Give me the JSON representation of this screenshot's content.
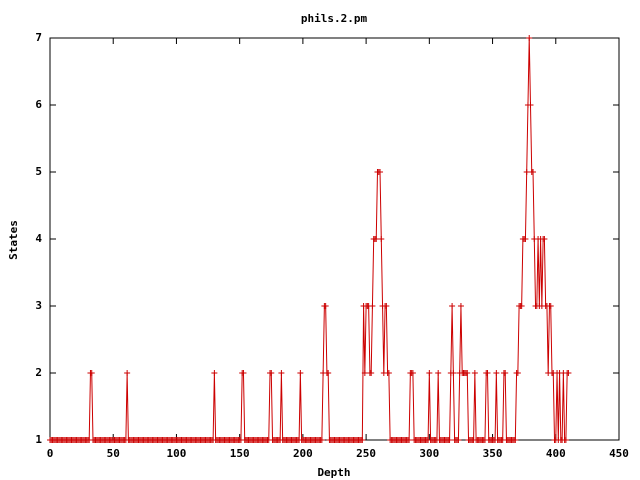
{
  "chart_data": {
    "type": "line",
    "title": "phils.2.pm",
    "x_label": "Depth",
    "y_label": "States",
    "xlim": [
      0,
      450
    ],
    "xticks": [
      0,
      50,
      100,
      150,
      200,
      250,
      300,
      350,
      400,
      450
    ],
    "ylim": [
      1,
      7
    ],
    "yticks": [
      1,
      2,
      3,
      4,
      5,
      6,
      7
    ],
    "grid": false,
    "x": [
      0,
      1,
      2,
      3,
      4,
      5,
      6,
      7,
      8,
      9,
      10,
      11,
      12,
      13,
      14,
      15,
      16,
      17,
      18,
      19,
      20,
      21,
      22,
      23,
      24,
      25,
      26,
      27,
      28,
      29,
      30,
      31,
      32,
      33,
      34,
      35,
      36,
      37,
      38,
      39,
      40,
      41,
      42,
      43,
      44,
      45,
      46,
      47,
      48,
      49,
      50,
      51,
      52,
      53,
      54,
      55,
      56,
      57,
      58,
      59,
      60,
      61,
      62,
      63,
      64,
      65,
      66,
      67,
      68,
      69,
      70,
      71,
      72,
      73,
      74,
      75,
      76,
      77,
      78,
      79,
      80,
      81,
      82,
      83,
      84,
      85,
      86,
      87,
      88,
      89,
      90,
      91,
      92,
      93,
      94,
      95,
      96,
      97,
      98,
      99,
      100,
      101,
      102,
      103,
      104,
      105,
      106,
      107,
      108,
      109,
      110,
      111,
      112,
      113,
      114,
      115,
      116,
      117,
      118,
      119,
      120,
      121,
      122,
      123,
      124,
      125,
      126,
      127,
      128,
      129,
      130,
      131,
      132,
      133,
      134,
      135,
      136,
      137,
      138,
      139,
      140,
      141,
      142,
      143,
      144,
      145,
      146,
      147,
      148,
      149,
      150,
      151,
      152,
      153,
      154,
      155,
      156,
      157,
      158,
      159,
      160,
      161,
      162,
      163,
      164,
      165,
      166,
      167,
      168,
      169,
      170,
      171,
      172,
      173,
      174,
      175,
      176,
      177,
      178,
      179,
      180,
      181,
      182,
      183,
      184,
      185,
      186,
      187,
      188,
      189,
      190,
      191,
      192,
      193,
      194,
      195,
      196,
      197,
      198,
      199,
      200,
      201,
      202,
      203,
      204,
      205,
      206,
      207,
      208,
      209,
      210,
      211,
      212,
      213,
      214,
      215,
      216,
      217,
      218,
      219,
      220,
      221,
      222,
      223,
      224,
      225,
      226,
      227,
      228,
      229,
      230,
      231,
      232,
      233,
      234,
      235,
      236,
      237,
      238,
      239,
      240,
      241,
      242,
      243,
      244,
      245,
      246,
      247,
      248,
      249,
      250,
      251,
      252,
      253,
      254,
      255,
      256,
      257,
      258,
      259,
      260,
      261,
      262,
      263,
      264,
      265,
      266,
      267,
      268,
      269,
      270,
      271,
      272,
      273,
      274,
      275,
      276,
      277,
      278,
      279,
      280,
      281,
      282,
      283,
      284,
      285,
      286,
      287,
      288,
      289,
      290,
      291,
      292,
      293,
      294,
      295,
      296,
      297,
      298,
      299,
      300,
      301,
      302,
      303,
      304,
      305,
      306,
      307,
      308,
      309,
      310,
      311,
      312,
      313,
      314,
      315,
      316,
      317,
      318,
      319,
      320,
      321,
      322,
      323,
      324,
      325,
      326,
      327,
      328,
      329,
      330,
      331,
      332,
      333,
      334,
      335,
      336,
      337,
      338,
      339,
      340,
      341,
      342,
      343,
      344,
      345,
      346,
      347,
      348,
      349,
      350,
      351,
      352,
      353,
      354,
      355,
      356,
      357,
      358,
      359,
      360,
      361,
      362,
      363,
      364,
      365,
      366,
      367,
      368,
      369,
      370,
      371,
      372,
      373,
      374,
      375,
      376,
      377,
      378,
      379,
      380,
      381,
      382,
      383,
      384,
      385,
      386,
      387,
      388,
      389,
      390,
      391,
      392,
      393,
      394,
      395,
      396,
      397,
      398,
      399,
      400,
      401,
      402,
      403,
      404,
      405,
      406,
      407,
      408,
      409,
      410
    ],
    "series": [
      {
        "name": "phils.2.pm",
        "color": "#cc0000",
        "values": [
          1,
          1,
          1,
          1,
          1,
          1,
          1,
          1,
          1,
          1,
          1,
          1,
          1,
          1,
          1,
          1,
          1,
          1,
          1,
          1,
          1,
          1,
          1,
          1,
          1,
          1,
          1,
          1,
          1,
          1,
          1,
          1,
          2,
          2,
          1,
          1,
          1,
          1,
          1,
          1,
          1,
          1,
          1,
          1,
          1,
          1,
          1,
          1,
          1,
          1,
          1,
          1,
          1,
          1,
          1,
          1,
          1,
          1,
          1,
          1,
          1,
          2,
          1,
          1,
          1,
          1,
          1,
          1,
          1,
          1,
          1,
          1,
          1,
          1,
          1,
          1,
          1,
          1,
          1,
          1,
          1,
          1,
          1,
          1,
          1,
          1,
          1,
          1,
          1,
          1,
          1,
          1,
          1,
          1,
          1,
          1,
          1,
          1,
          1,
          1,
          1,
          1,
          1,
          1,
          1,
          1,
          1,
          1,
          1,
          1,
          1,
          1,
          1,
          1,
          1,
          1,
          1,
          1,
          1,
          1,
          1,
          1,
          1,
          1,
          1,
          1,
          1,
          1,
          1,
          1,
          2,
          1,
          1,
          1,
          1,
          1,
          1,
          1,
          1,
          1,
          1,
          1,
          1,
          1,
          1,
          1,
          1,
          1,
          1,
          1,
          1,
          1,
          2,
          2,
          1,
          1,
          1,
          1,
          1,
          1,
          1,
          1,
          1,
          1,
          1,
          1,
          1,
          1,
          1,
          1,
          1,
          1,
          1,
          1,
          2,
          2,
          1,
          1,
          1,
          1,
          1,
          1,
          1,
          2,
          1,
          1,
          1,
          1,
          1,
          1,
          1,
          1,
          1,
          1,
          1,
          1,
          1,
          1,
          2,
          1,
          1,
          1,
          1,
          1,
          1,
          1,
          1,
          1,
          1,
          1,
          1,
          1,
          1,
          1,
          1,
          1,
          2,
          3,
          3,
          2,
          2,
          1,
          1,
          1,
          1,
          1,
          1,
          1,
          1,
          1,
          1,
          1,
          1,
          1,
          1,
          1,
          1,
          1,
          1,
          1,
          1,
          1,
          1,
          1,
          1,
          1,
          1,
          1,
          3,
          2,
          3,
          3,
          3,
          2,
          2,
          3,
          4,
          4,
          4,
          5,
          5,
          5,
          4,
          3,
          2,
          3,
          3,
          2,
          2,
          1,
          1,
          1,
          1,
          1,
          1,
          1,
          1,
          1,
          1,
          1,
          1,
          1,
          1,
          1,
          1,
          2,
          2,
          2,
          1,
          1,
          1,
          1,
          1,
          1,
          1,
          1,
          1,
          1,
          1,
          1,
          2,
          1,
          1,
          1,
          1,
          1,
          1,
          2,
          1,
          1,
          1,
          1,
          1,
          1,
          1,
          1,
          1,
          2,
          3,
          2,
          1,
          1,
          1,
          1,
          2,
          3,
          2,
          2,
          2,
          2,
          2,
          1,
          1,
          1,
          1,
          1,
          2,
          1,
          1,
          1,
          1,
          1,
          1,
          1,
          1,
          2,
          2,
          1,
          1,
          1,
          1,
          1,
          1,
          2,
          1,
          1,
          1,
          1,
          1,
          2,
          2,
          1,
          1,
          1,
          1,
          1,
          1,
          1,
          1,
          2,
          2,
          3,
          3,
          3,
          4,
          4,
          4,
          5,
          6,
          7,
          6,
          5,
          5,
          4,
          3,
          3,
          4,
          3,
          4,
          3,
          4,
          4,
          3,
          3,
          2,
          3,
          3,
          2,
          2,
          1,
          1,
          2,
          1,
          2,
          1,
          1,
          2,
          1,
          1,
          2,
          2
        ]
      }
    ]
  }
}
